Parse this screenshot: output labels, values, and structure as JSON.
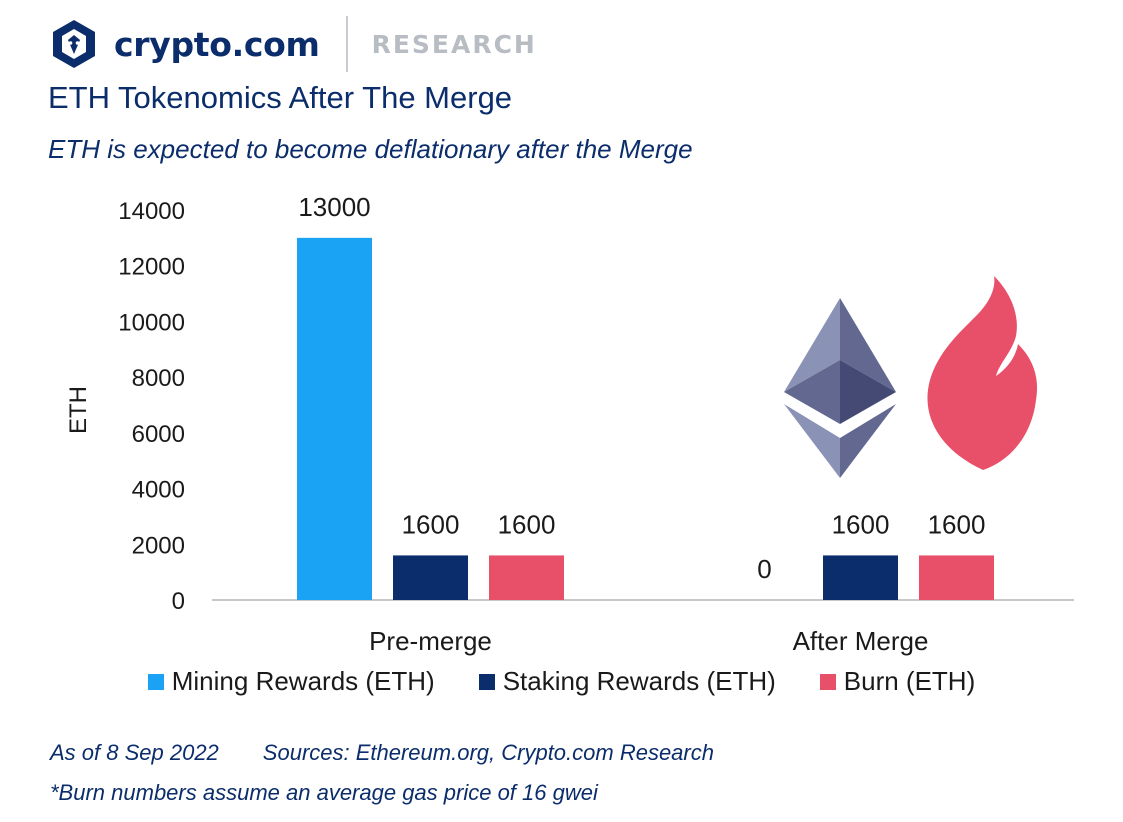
{
  "header": {
    "brand": "crypto.com",
    "section": "RESEARCH",
    "logo_icon": "crypto-com-lion-shield-icon"
  },
  "title": "ETH Tokenomics After The Merge",
  "subtitle": "ETH is expected to become deflationary after the Merge",
  "chart_data": {
    "type": "bar",
    "categories": [
      "Pre-merge",
      "After Merge"
    ],
    "series": [
      {
        "name": "Mining Rewards (ETH)",
        "values": [
          13000,
          0
        ],
        "color": "#1aa3f5"
      },
      {
        "name": "Staking Rewards (ETH)",
        "values": [
          1600,
          1600
        ],
        "color": "#0b2d6b"
      },
      {
        "name": "Burn (ETH)",
        "values": [
          1600,
          1600
        ],
        "color": "#e8506a"
      }
    ],
    "ylabel": "ETH",
    "ylim": [
      0,
      14000
    ],
    "yticks": [
      0,
      2000,
      4000,
      6000,
      8000,
      10000,
      12000,
      14000
    ],
    "data_labels": true,
    "grid": false,
    "legend": "bottom",
    "decorations": [
      "ethereum-logo-icon",
      "flame-icon"
    ]
  },
  "footer": {
    "as_of": "As of 8 Sep 2022",
    "sources": "Sources: Ethereum.org, Crypto.com Research",
    "note": "*Burn numbers assume an average gas price of 16 gwei"
  }
}
